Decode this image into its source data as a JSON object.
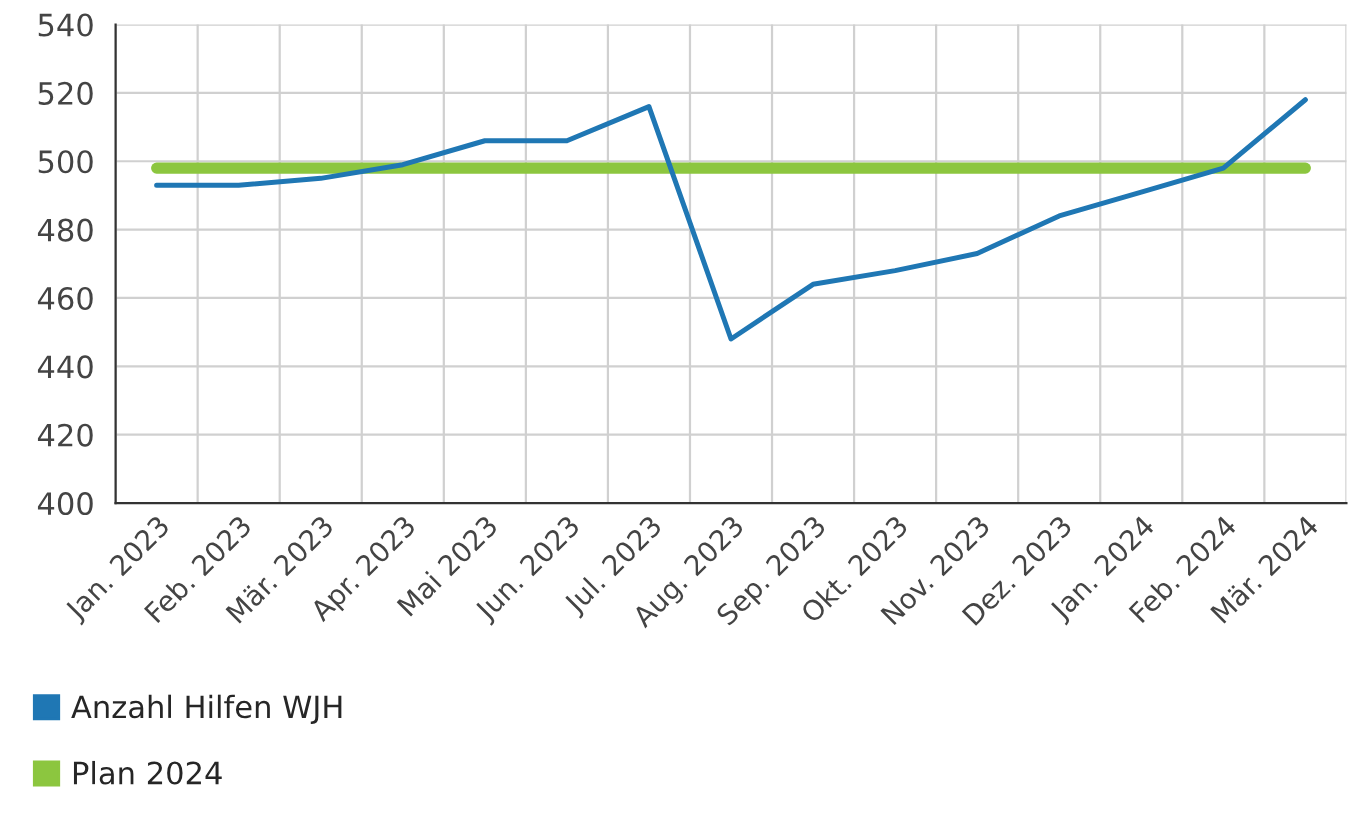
{
  "chart_data": {
    "type": "line",
    "categories": [
      "Jan. 2023",
      "Feb. 2023",
      "Mär. 2023",
      "Apr. 2023",
      "Mai 2023",
      "Jun. 2023",
      "Jul. 2023",
      "Aug. 2023",
      "Sep. 2023",
      "Okt. 2023",
      "Nov. 2023",
      "Dez. 2023",
      "Jan. 2024",
      "Feb. 2024",
      "Mär. 2024"
    ],
    "series": [
      {
        "name": "Anzahl Hilfen WJH",
        "color": "#1f77b4",
        "values": [
          493,
          493,
          495,
          499,
          506,
          506,
          516,
          448,
          464,
          468,
          473,
          484,
          491,
          498,
          518
        ]
      },
      {
        "name": "Plan 2024",
        "color": "#8cc63f",
        "values": [
          498,
          498,
          498,
          498,
          498,
          498,
          498,
          498,
          498,
          498,
          498,
          498,
          498,
          498,
          498
        ]
      }
    ],
    "ylim": [
      400,
      540
    ],
    "yticks": [
      400,
      420,
      440,
      460,
      480,
      500,
      520,
      540
    ],
    "grid": true,
    "legend": "bottom left",
    "marker": "none",
    "line_style": "solid"
  }
}
